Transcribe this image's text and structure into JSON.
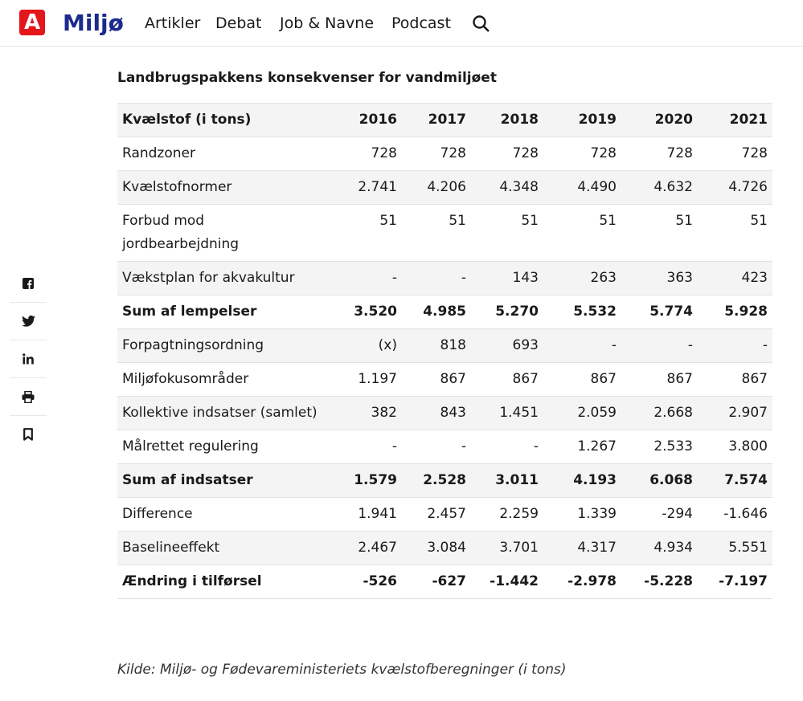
{
  "header": {
    "logo": "A",
    "brand": "Miljø",
    "nav": [
      "Artikler",
      "Debat",
      "Job & Navne",
      "Podcast"
    ]
  },
  "article": {
    "title": "Landbrugspakkens konsekvenser for vandmiljøet",
    "table": {
      "header": [
        "Kvælstof (i tons)",
        "2016",
        "2017",
        "2018",
        "2019",
        "2020",
        "2021"
      ],
      "rows": [
        {
          "cells": [
            "Randzoner",
            "728",
            "728",
            "728",
            "728",
            "728",
            "728"
          ]
        },
        {
          "cells": [
            "Kvælstofnormer",
            "2.741",
            "4.206",
            "4.348",
            "4.490",
            "4.632",
            "4.726"
          ]
        },
        {
          "cells": [
            "Forbud mod jordbearbejdning",
            "51",
            "51",
            "51",
            "51",
            "51",
            "51"
          ]
        },
        {
          "cells": [
            "Vækstplan for akvakultur",
            "-",
            "-",
            "143",
            "263",
            "363",
            "423"
          ]
        },
        {
          "cells": [
            "Sum af lempelser",
            "3.520",
            "4.985",
            "5.270",
            "5.532",
            "5.774",
            "5.928"
          ],
          "bold": true
        },
        {
          "cells": [
            "Forpagtningsordning",
            "(x)",
            "818",
            "693",
            "-",
            "-",
            "-"
          ]
        },
        {
          "cells": [
            "Miljøfokusområder",
            "1.197",
            "867",
            "867",
            "867",
            "867",
            "867"
          ]
        },
        {
          "cells": [
            "Kollektive indsatser (samlet)",
            "382",
            "843",
            "1.451",
            "2.059",
            "2.668",
            "2.907"
          ]
        },
        {
          "cells": [
            "Målrettet regulering",
            "-",
            "-",
            "-",
            "1.267",
            "2.533",
            "3.800"
          ]
        },
        {
          "cells": [
            "Sum af indsatser",
            "1.579",
            "2.528",
            "3.011",
            "4.193",
            "6.068",
            "7.574"
          ],
          "bold": true
        },
        {
          "cells": [
            "Difference",
            "1.941",
            "2.457",
            "2.259",
            "1.339",
            "-294",
            "-1.646"
          ]
        },
        {
          "cells": [
            "Baselineeffekt",
            "2.467",
            "3.084",
            "3.701",
            "4.317",
            "4.934",
            "5.551"
          ]
        },
        {
          "cells": [
            "Ændring i tilførsel",
            "-526",
            "-627",
            "-1.442",
            "-2.978",
            "-5.228",
            "-7.197"
          ],
          "bold": true
        }
      ]
    },
    "source": "Kilde: Miljø- og Fødevareministeriets kvælstofberegninger (i tons)"
  }
}
